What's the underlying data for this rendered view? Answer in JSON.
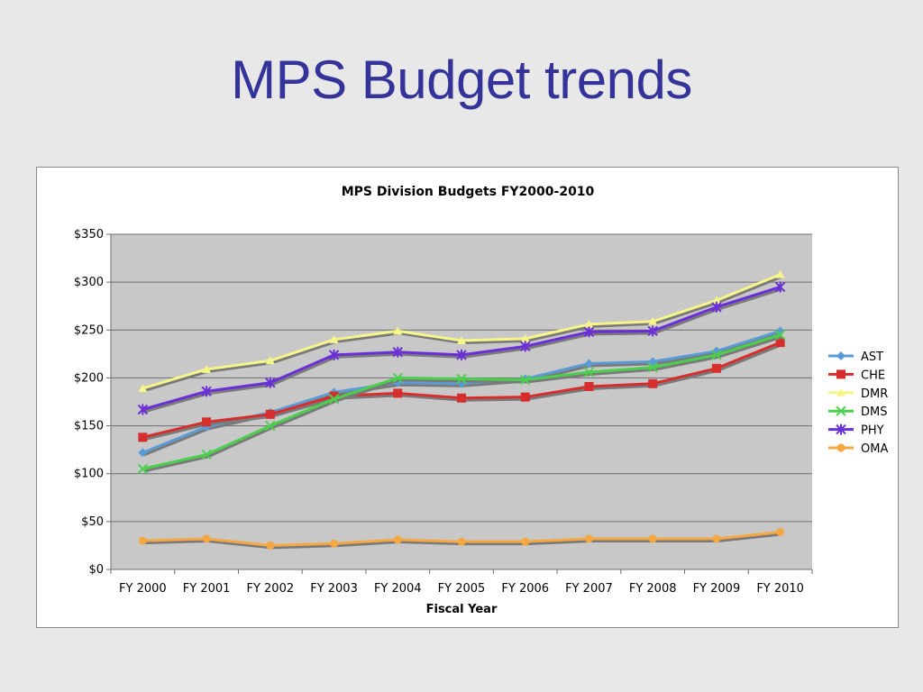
{
  "slide": {
    "title": "MPS Budget trends"
  },
  "chart_data": {
    "type": "line",
    "title": "MPS Division Budgets FY2000-2010",
    "xlabel": "Fiscal Year",
    "ylabel": "",
    "ylim": [
      0,
      350
    ],
    "yticks": [
      0,
      50,
      100,
      150,
      200,
      250,
      300,
      350
    ],
    "yticklabels": [
      "$0",
      "$50",
      "$100",
      "$150",
      "$200",
      "$250",
      "$300",
      "$350"
    ],
    "categories": [
      "FY 2000",
      "FY 2001",
      "FY 2002",
      "FY 2003",
      "FY 2004",
      "FY 2005",
      "FY 2006",
      "FY 2007",
      "FY 2008",
      "FY 2009",
      "FY 2010"
    ],
    "grid": true,
    "legend_position": "right",
    "series": [
      {
        "name": "AST",
        "color": "#5b9bd5",
        "marker": "diamond",
        "values": [
          122,
          149,
          164,
          185,
          195,
          194,
          199,
          215,
          217,
          228,
          249
        ]
      },
      {
        "name": "CHE",
        "color": "#d62d2d",
        "marker": "square",
        "values": [
          138,
          154,
          162,
          181,
          184,
          179,
          180,
          191,
          194,
          210,
          237
        ]
      },
      {
        "name": "DMR",
        "color": "#f5f58a",
        "marker": "triangle",
        "values": [
          189,
          209,
          218,
          240,
          249,
          239,
          241,
          256,
          259,
          281,
          308
        ]
      },
      {
        "name": "DMS",
        "color": "#4ccf4c",
        "marker": "x",
        "values": [
          105,
          120,
          150,
          178,
          200,
          199,
          198,
          206,
          211,
          224,
          245
        ]
      },
      {
        "name": "PHY",
        "color": "#6a2fd6",
        "marker": "star",
        "values": [
          167,
          186,
          195,
          224,
          227,
          224,
          233,
          248,
          249,
          274,
          295
        ]
      },
      {
        "name": "OMA",
        "color": "#f5a742",
        "marker": "circle",
        "values": [
          30,
          32,
          25,
          27,
          31,
          29,
          29,
          32,
          32,
          32,
          39
        ]
      }
    ]
  }
}
